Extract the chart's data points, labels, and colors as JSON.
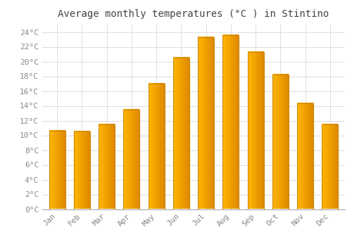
{
  "title": "Average monthly temperatures (°C ) in Stintino",
  "months": [
    "Jan",
    "Feb",
    "Mar",
    "Apr",
    "May",
    "Jun",
    "Jul",
    "Aug",
    "Sep",
    "Oct",
    "Nov",
    "Dec"
  ],
  "values": [
    10.6,
    10.5,
    11.5,
    13.5,
    17.0,
    20.5,
    23.3,
    23.6,
    21.3,
    18.2,
    14.3,
    11.5
  ],
  "bar_color_light": "#FFB800",
  "bar_color_dark": "#E08000",
  "bar_edge_color": "#CC8800",
  "background_color": "#FFFFFF",
  "grid_color": "#DDDDDD",
  "ylim": [
    0,
    25
  ],
  "yticks": [
    0,
    2,
    4,
    6,
    8,
    10,
    12,
    14,
    16,
    18,
    20,
    22,
    24
  ],
  "title_fontsize": 10,
  "tick_fontsize": 8,
  "font_family": "monospace"
}
